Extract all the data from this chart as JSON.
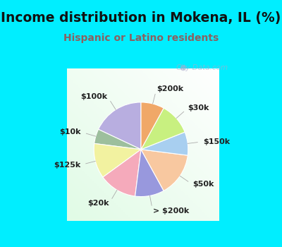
{
  "title": "Income distribution in Mokena, IL (%)",
  "subtitle": "Hispanic or Latino residents",
  "title_color": "#111111",
  "subtitle_color": "#8B6060",
  "background_cyan": "#00EEFF",
  "chart_bg_color_tl": "#e0f5ee",
  "chart_bg_color_br": "#d0eee4",
  "watermark": "City-Data.com",
  "labels": [
    "$100k",
    "$10k",
    "$125k",
    "$20k",
    "> $200k",
    "$50k",
    "$150k",
    "$30k",
    "$200k"
  ],
  "values": [
    18,
    5,
    12,
    13,
    10,
    15,
    8,
    11,
    8
  ],
  "colors": [
    "#b8aee0",
    "#9dbf9d",
    "#f2f2a0",
    "#f5aabb",
    "#9898dd",
    "#f8c8a0",
    "#a8cff0",
    "#c8f080",
    "#f0a868"
  ],
  "startangle": 90,
  "figsize": [
    4.0,
    3.5
  ],
  "dpi": 100,
  "title_fontsize": 13.5,
  "subtitle_fontsize": 10,
  "label_fontsize": 8
}
